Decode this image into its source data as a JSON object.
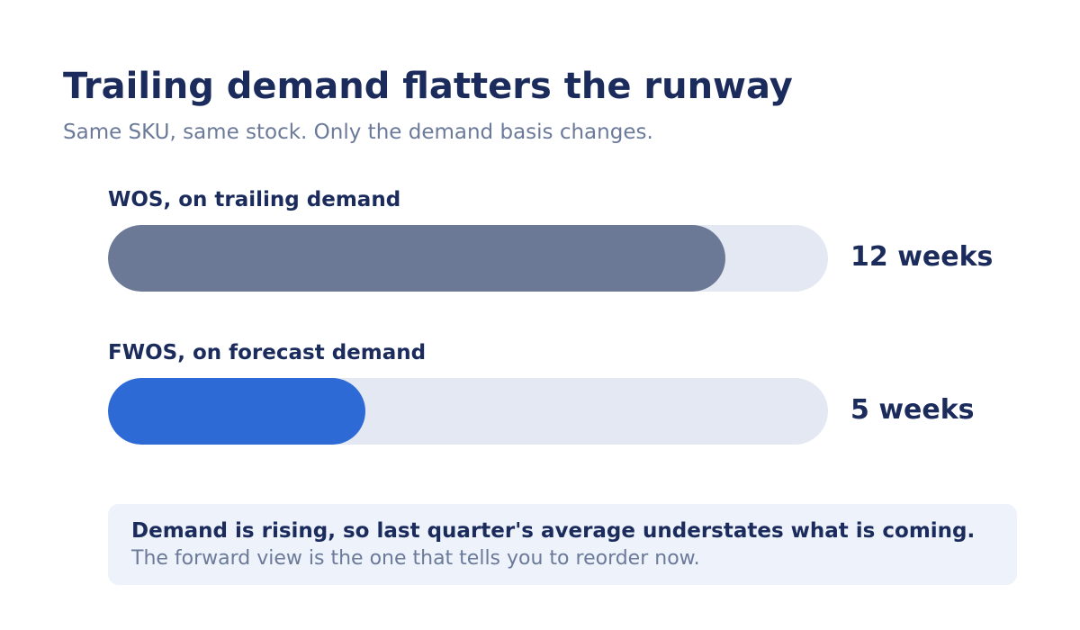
{
  "header": {
    "title": "Trailing demand flatters the runway",
    "subtitle": "Same SKU, same stock. Only the demand basis changes."
  },
  "chart_data": {
    "type": "bar",
    "orientation": "horizontal",
    "title": "Trailing demand flatters the runway",
    "subtitle": "Same SKU, same stock. Only the demand basis changes.",
    "categories": [
      "WOS, on trailing demand",
      "FWOS, on forecast demand"
    ],
    "values": [
      12,
      5
    ],
    "value_labels": [
      "12 weeks",
      "5 weeks"
    ],
    "xlim": [
      0,
      14
    ],
    "grid": false,
    "colors": [
      "#6b7896",
      "#2d6ad6"
    ],
    "track_color": "#e3e8f2"
  },
  "callout": {
    "headline": "Demand is rising, so last quarter's average understates what is coming.",
    "body": "The forward view is the one that tells you to reorder now."
  },
  "colors": {
    "text_primary": "#1a2b5c",
    "text_secondary": "#6b7a99",
    "callout_background": "#edf2fb"
  }
}
